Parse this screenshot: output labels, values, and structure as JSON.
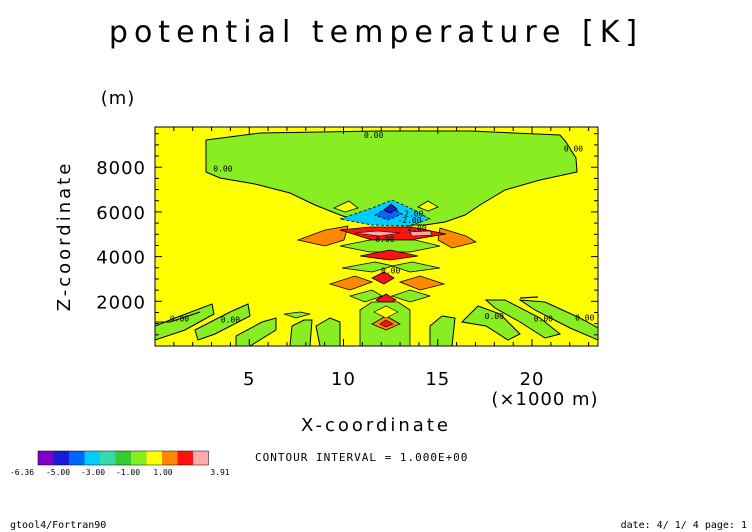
{
  "chart_data": {
    "type": "filled-contour",
    "title": "potential temperature [K]",
    "xlabel": "X-coordinate",
    "ylabel": "Z-coordinate",
    "x_unit": "(×1000 m)",
    "y_unit": "(m)",
    "xlim": [
      0,
      23.5
    ],
    "ylim": [
      0,
      9800
    ],
    "x_ticks": [
      5,
      10,
      15,
      20
    ],
    "y_ticks": [
      2000,
      4000,
      6000,
      8000
    ],
    "contour_labels": [
      {
        "text": "0.00",
        "x": 11.6,
        "y": 9300
      },
      {
        "text": "0.00",
        "x": 22.2,
        "y": 8700
      },
      {
        "text": "0.00",
        "x": 3.6,
        "y": 7800
      },
      {
        "text": "-2.00",
        "x": 13.6,
        "y": 5800
      },
      {
        "text": "-2.00",
        "x": 13.5,
        "y": 5500
      },
      {
        "text": "2.00",
        "x": 13.9,
        "y": 5150
      },
      {
        "text": "0.00",
        "x": 12.2,
        "y": 4650
      },
      {
        "text": "0.00",
        "x": 12.5,
        "y": 3250
      },
      {
        "text": "0.00",
        "x": 1.3,
        "y": 1100
      },
      {
        "text": "0.00",
        "x": 4.0,
        "y": 1050
      },
      {
        "text": "0.00",
        "x": 18.0,
        "y": 1200
      },
      {
        "text": "0.00",
        "x": 20.6,
        "y": 1100
      },
      {
        "text": "0.00",
        "x": 22.8,
        "y": 1150
      }
    ],
    "colorbar": {
      "colors": [
        "#7f00cc",
        "#1a1ad9",
        "#0066ff",
        "#00ccff",
        "#33ddaa",
        "#33cc33",
        "#88ee22",
        "#ffff00",
        "#ff8800",
        "#ff1111",
        "#ffaaaa"
      ],
      "labels": [
        "-6.36",
        "-5.00",
        "-3.00",
        "-1.00",
        "1.00",
        "3.91"
      ]
    },
    "contour_interval_text": "CONTOUR INTERVAL = 1.000E+00"
  },
  "footer": {
    "left": "gtool4/Fortran90",
    "right": "date: 4/ 1/ 4 page: 1"
  }
}
